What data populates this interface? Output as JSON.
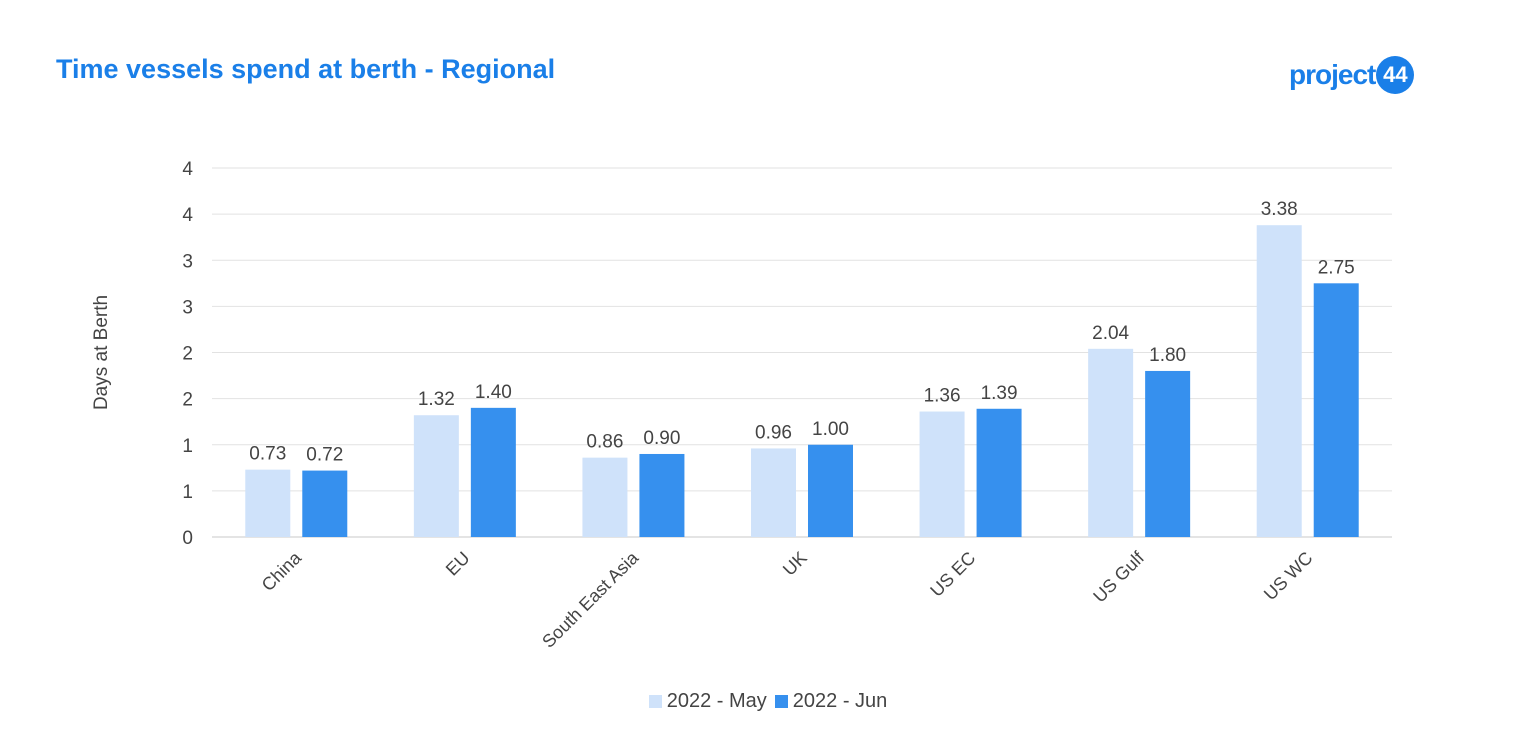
{
  "title": "Time vessels spend at berth - Regional",
  "logo": {
    "text": "project",
    "badge": "44",
    "color": "#1a7fe8"
  },
  "chart_data": {
    "type": "bar",
    "title": "Time vessels spend at berth - Regional",
    "xlabel": "",
    "ylabel": "Days at Berth",
    "categories": [
      "China",
      "EU",
      "South East Asia",
      "UK",
      "US EC",
      "US Gulf",
      "US WC"
    ],
    "series": [
      {
        "name": "2022 - May",
        "color": "#cfe2fa",
        "values": [
          0.73,
          1.32,
          0.86,
          0.96,
          1.36,
          2.04,
          3.38
        ]
      },
      {
        "name": "2022 - Jun",
        "color": "#3690ee",
        "values": [
          0.72,
          1.4,
          0.9,
          1.0,
          1.39,
          1.8,
          2.75
        ]
      }
    ],
    "value_labels": [
      [
        "0.73",
        "1.32",
        "0.86",
        "0.96",
        "1.36",
        "2.04",
        "3.38"
      ],
      [
        "0.72",
        "1.40",
        "0.90",
        "1.00",
        "1.39",
        "1.80",
        "2.75"
      ]
    ],
    "ylim": [
      0,
      4
    ],
    "y_ticks": [
      0,
      0.5,
      1,
      1.5,
      2,
      2.5,
      3,
      3.5,
      4
    ],
    "y_tick_labels": [
      "0",
      "1",
      "1",
      "2",
      "2",
      "3",
      "3",
      "4",
      "4"
    ],
    "grid": true,
    "legend_position": "bottom"
  }
}
